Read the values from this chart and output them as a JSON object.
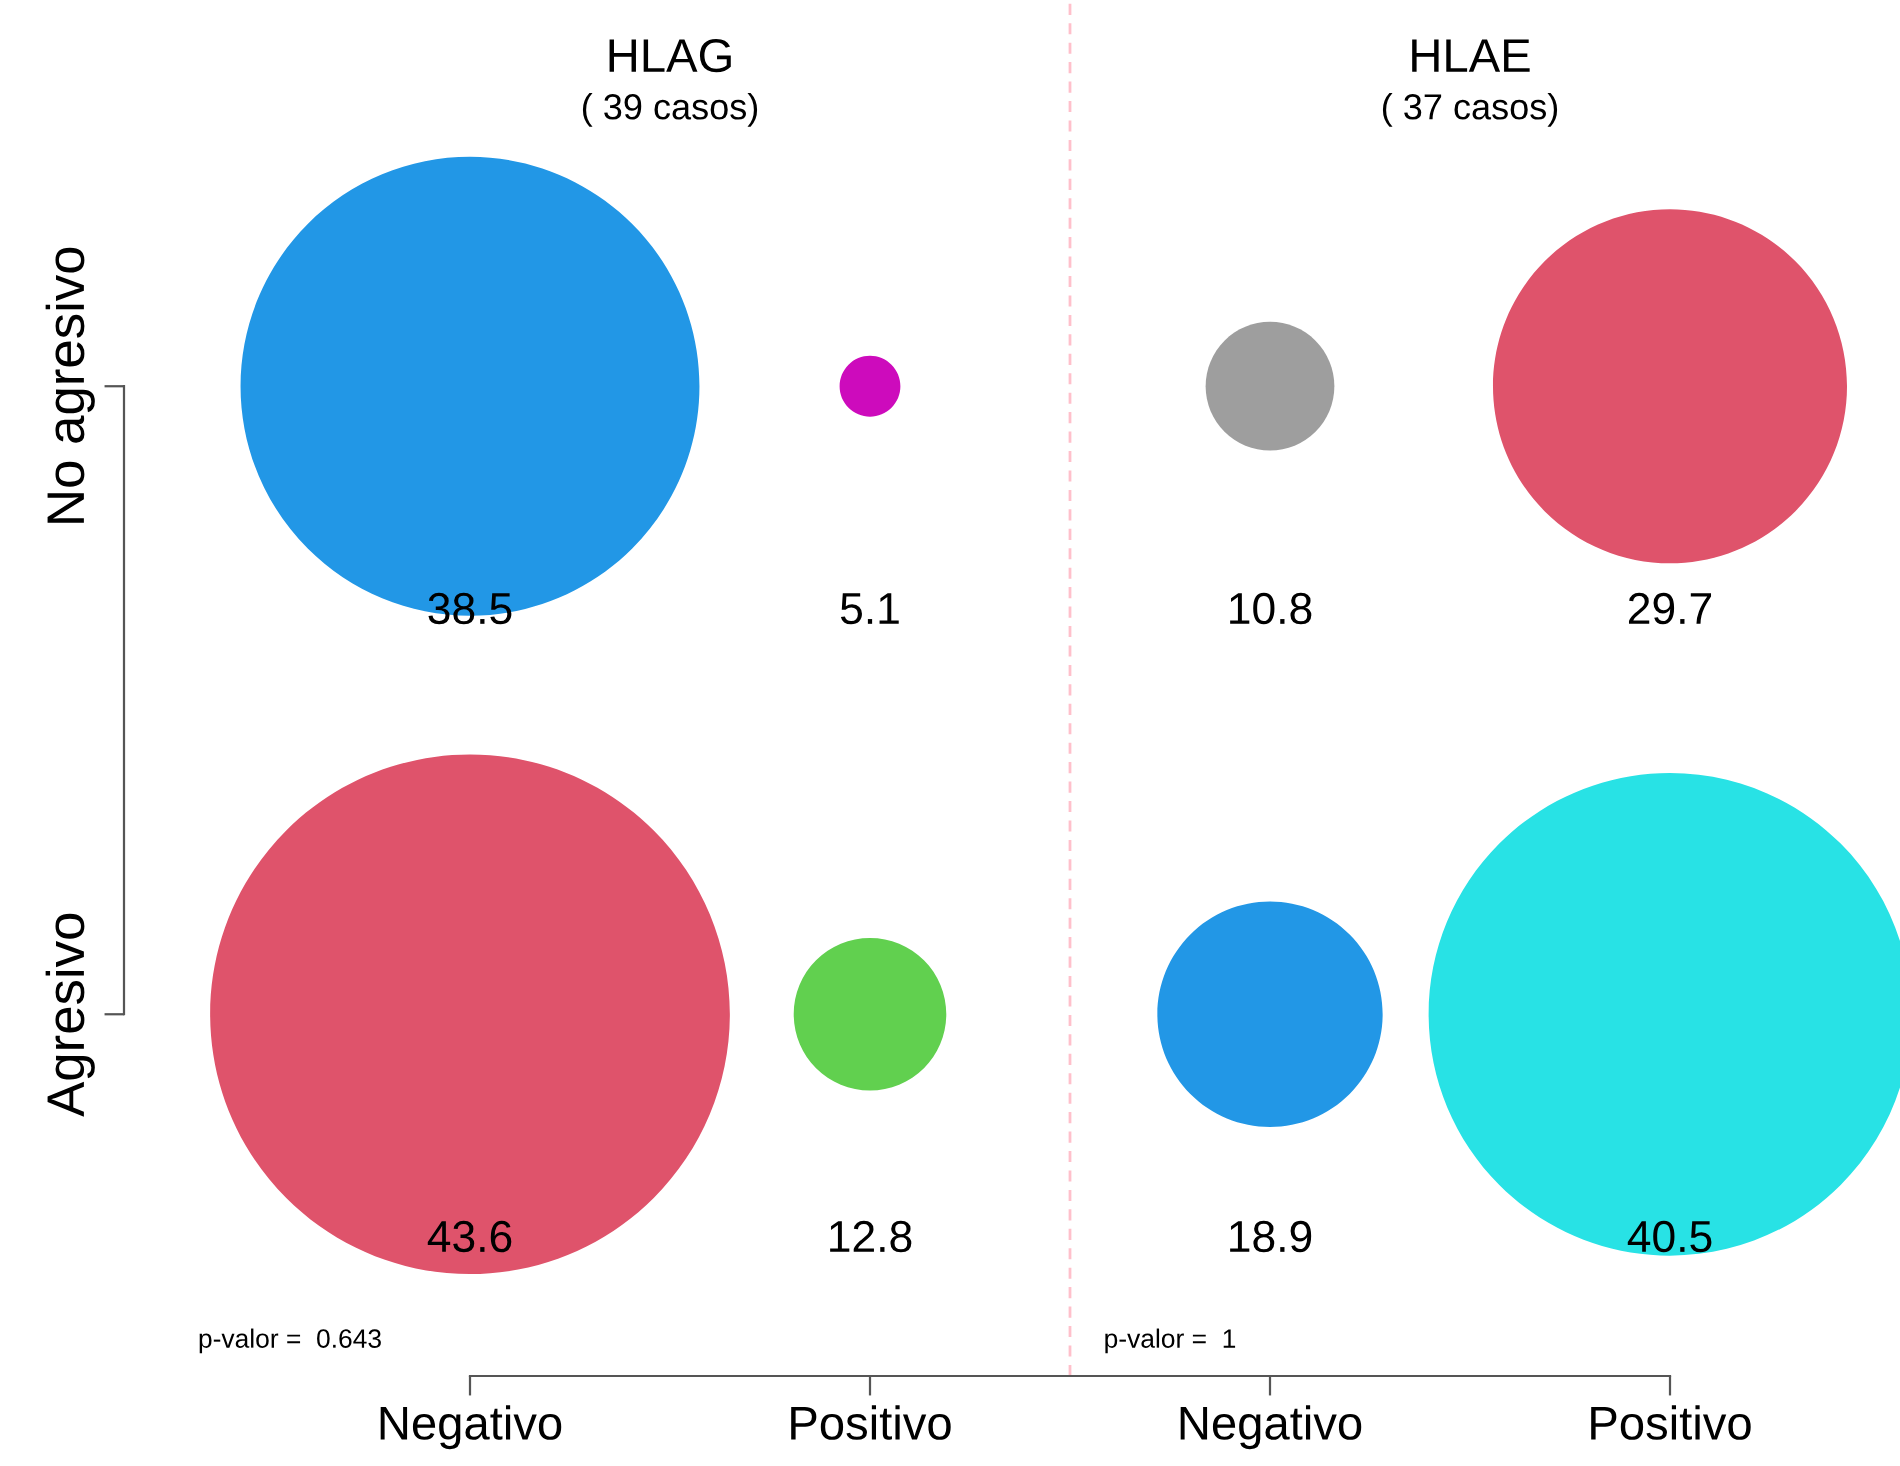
{
  "chart_data": {
    "type": "other",
    "categories": [
      "Negativo",
      "Positivo",
      "Negativo",
      "Positivo"
    ],
    "y_categories": [
      "No agresivo",
      "Agresivo"
    ],
    "series": [
      {
        "values": [
          38.5,
          5.1,
          10.8,
          29.7
        ],
        "colors": [
          "#2297e6",
          "#cd0bbc",
          "#9e9e9e",
          "#df536b"
        ]
      },
      {
        "values": [
          43.6,
          12.8,
          18.9,
          40.5
        ],
        "colors": [
          "#df536b",
          "#61d04f",
          "#2297e6",
          "#28e2e5"
        ]
      }
    ],
    "annotations": [
      "HLAG",
      "( 39 casos)",
      "HLAE",
      "( 37 casos)",
      "p-valor =  0.643",
      "p-valor =  1"
    ],
    "data_labels": true
  }
}
